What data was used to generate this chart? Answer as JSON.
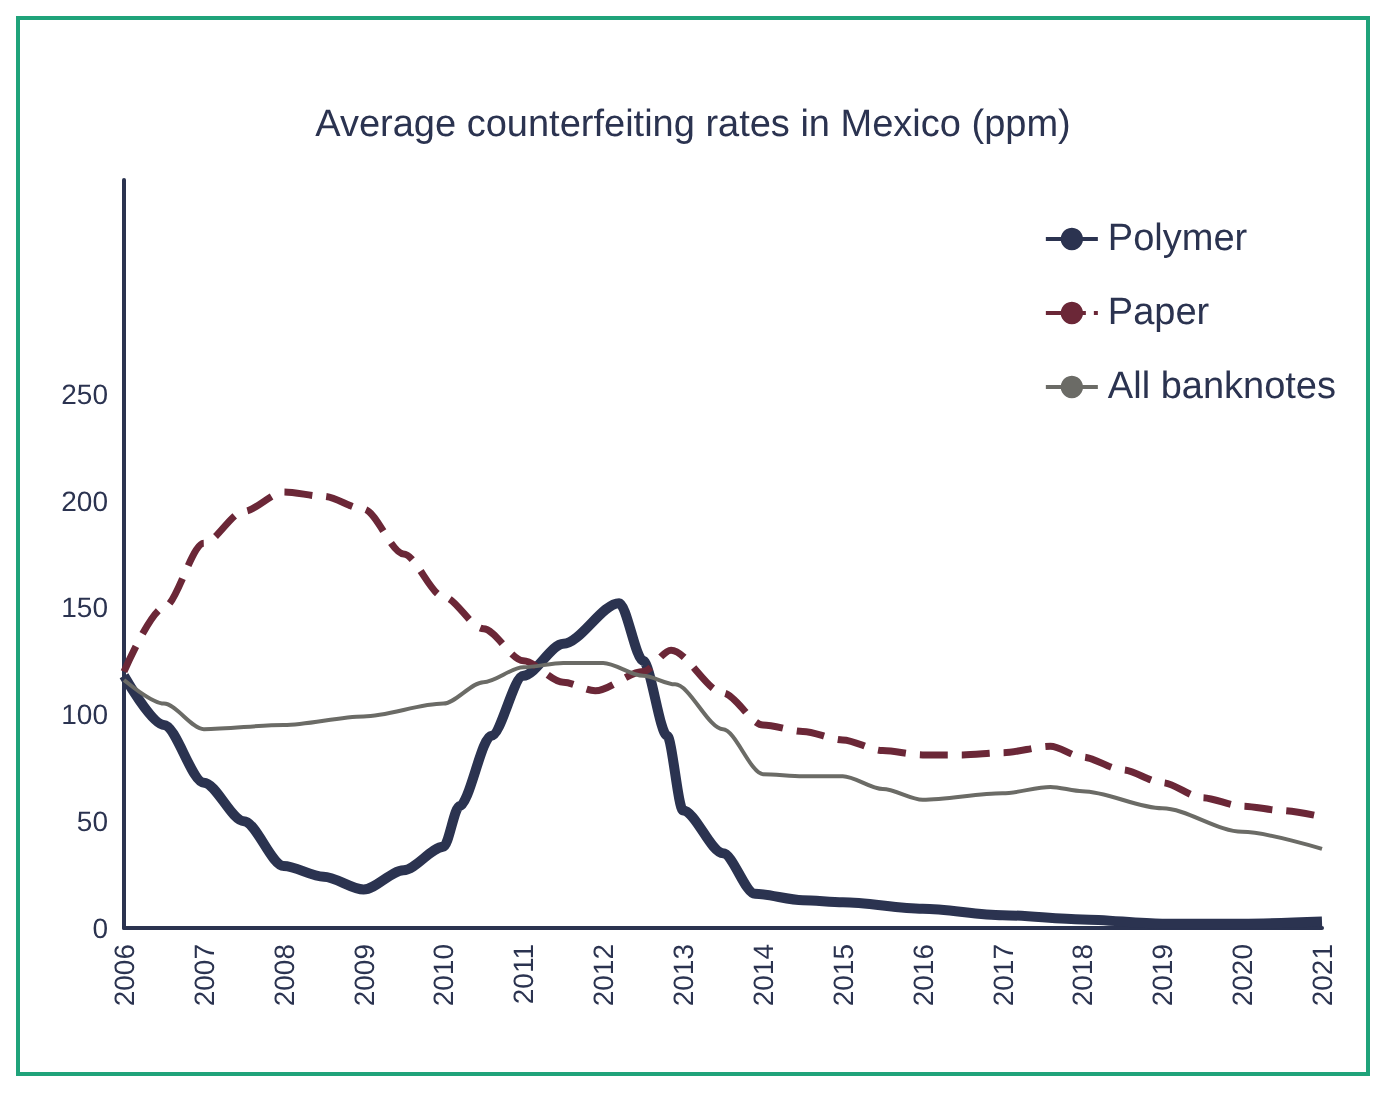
{
  "chart_data": {
    "type": "line",
    "title": "Average counterfeiting rates in Mexico (ppm)",
    "xlim": [
      2006,
      2021
    ],
    "xticks": [
      2006,
      2007,
      2008,
      2009,
      2010,
      2011,
      2012,
      2013,
      2014,
      2015,
      2016,
      2017,
      2018,
      2019,
      2020,
      2021
    ],
    "ylim": [
      0,
      350
    ],
    "yticks": [
      0,
      50,
      100,
      150,
      200,
      250
    ],
    "grid": false,
    "legend": "top right",
    "marker": "none",
    "series": [
      {
        "name": "Polymer",
        "color": "#2b3350",
        "line_style": "solid",
        "x": [
          2006,
          2006.5,
          2007,
          2007.5,
          2008,
          2008.5,
          2009,
          2009.5,
          2010,
          2010.2,
          2010.6,
          2011,
          2011.5,
          2012.2,
          2012.5,
          2012.8,
          2013,
          2013.5,
          2013.9,
          2014.5,
          2015,
          2016,
          2017,
          2018,
          2019,
          2020,
          2021
        ],
        "values": [
          118,
          95,
          68,
          50,
          29,
          24,
          18,
          27,
          38,
          57,
          90,
          118,
          133,
          152,
          125,
          90,
          55,
          35,
          16,
          13,
          12,
          9,
          6,
          4,
          2,
          2,
          3
        ]
      },
      {
        "name": "Paper",
        "color": "#6b2737",
        "line_style": "dashed",
        "x": [
          2006,
          2006.5,
          2007,
          2007.5,
          2008,
          2008.5,
          2009,
          2009.5,
          2010,
          2010.5,
          2011,
          2011.5,
          2011.9,
          2012.5,
          2012.85,
          2013.5,
          2014,
          2014.5,
          2015,
          2015.5,
          2016,
          2016.5,
          2017,
          2017.6,
          2018,
          2018.5,
          2019,
          2019.5,
          2020,
          2020.5,
          2021
        ],
        "values": [
          120,
          150,
          180,
          195,
          204,
          202,
          196,
          175,
          155,
          140,
          125,
          115,
          111,
          120,
          130,
          110,
          95,
          92,
          88,
          83,
          81,
          81,
          82,
          85,
          80,
          74,
          68,
          61,
          57,
          55,
          52
        ]
      },
      {
        "name": "All banknotes",
        "color": "#6b6b66",
        "line_style": "solid",
        "x": [
          2006,
          2006.5,
          2007,
          2008,
          2009,
          2010,
          2010.5,
          2011,
          2011.5,
          2012,
          2012.5,
          2012.9,
          2013.5,
          2014,
          2014.5,
          2015,
          2015.5,
          2016,
          2017,
          2017.6,
          2018,
          2019,
          2020,
          2021
        ],
        "values": [
          116,
          105,
          93,
          95,
          99,
          105,
          115,
          122,
          124,
          124,
          118,
          114,
          93,
          72,
          71,
          71,
          65,
          60,
          63,
          66,
          64,
          56,
          45,
          37
        ]
      }
    ]
  }
}
